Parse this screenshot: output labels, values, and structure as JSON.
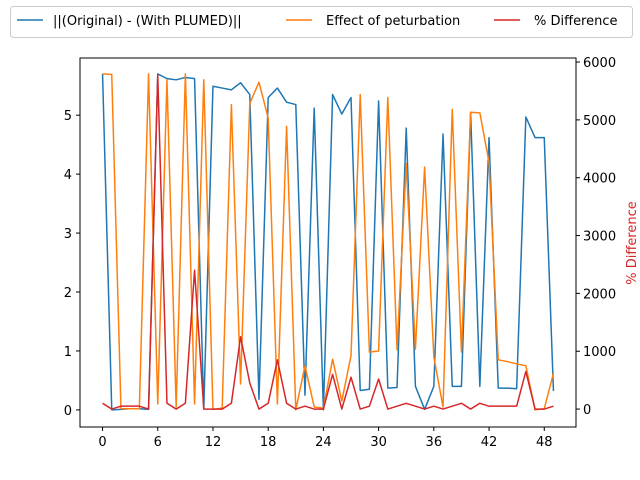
{
  "chart_data": {
    "type": "line",
    "title": "",
    "xlabel": "",
    "ylabel_left": "",
    "ylabel_right": "% Difference",
    "grid": false,
    "legend_placement": "top, above plot, horizontal",
    "xlim": [
      -2.45,
      51.45
    ],
    "ylim_left": [
      -0.29,
      5.97
    ],
    "ylim_right": [
      -310,
      6070
    ],
    "x_ticks": [
      0,
      6,
      12,
      18,
      24,
      30,
      36,
      42,
      48
    ],
    "y_ticks_left": [
      0,
      1,
      2,
      3,
      4,
      5
    ],
    "y_ticks_right": [
      0,
      1000,
      2000,
      3000,
      4000,
      5000,
      6000
    ],
    "x": [
      0,
      1,
      2,
      3,
      4,
      5,
      6,
      7,
      8,
      9,
      10,
      11,
      12,
      13,
      14,
      15,
      16,
      17,
      18,
      19,
      20,
      21,
      22,
      23,
      24,
      25,
      26,
      27,
      28,
      29,
      30,
      31,
      32,
      33,
      34,
      35,
      36,
      37,
      38,
      39,
      40,
      41,
      42,
      43,
      44,
      45,
      46,
      47,
      48,
      49
    ],
    "series": [
      {
        "name": "||(Original) - (With PLUMED)||",
        "axis": "left",
        "color": "#1f77b4",
        "values": [
          5.7,
          0.0,
          0.01,
          0.02,
          0.02,
          0.01,
          5.7,
          5.62,
          5.6,
          5.64,
          5.62,
          0.02,
          5.49,
          5.46,
          5.43,
          5.55,
          5.35,
          0.18,
          5.3,
          5.46,
          5.22,
          5.18,
          0.25,
          5.12,
          0.0,
          5.35,
          5.02,
          5.3,
          0.33,
          0.35,
          5.24,
          0.37,
          0.38,
          4.78,
          0.4,
          0.01,
          0.4,
          4.68,
          0.4,
          0.4,
          5.04,
          0.4,
          4.62,
          0.37,
          0.37,
          0.36,
          4.97,
          4.62,
          4.62,
          0.32
        ]
      },
      {
        "name": "Effect of peturbation",
        "axis": "left",
        "color": "#ff7f0e",
        "values": [
          5.7,
          5.69,
          0.02,
          0.02,
          0.02,
          5.7,
          0.1,
          5.6,
          0.05,
          5.7,
          0.1,
          5.6,
          0.01,
          0.03,
          5.18,
          0.44,
          5.2,
          5.56,
          4.95,
          0.1,
          4.81,
          0.0,
          0.75,
          0.05,
          0.03,
          0.86,
          0.15,
          0.92,
          5.35,
          0.98,
          1.0,
          5.3,
          1.02,
          4.18,
          1.03,
          4.12,
          0.9,
          0.05,
          5.1,
          0.98,
          5.05,
          5.04,
          4.2,
          0.85,
          0.82,
          0.78,
          0.75,
          0.0,
          0.02,
          0.62
        ]
      },
      {
        "name": "% Difference",
        "axis": "right",
        "color": "#d62728",
        "values": [
          100,
          0,
          50,
          50,
          50,
          0,
          5780,
          100,
          0,
          100,
          2400,
          0,
          0,
          0,
          100,
          1250,
          450,
          0,
          100,
          850,
          100,
          0,
          50,
          0,
          0,
          600,
          0,
          550,
          0,
          50,
          520,
          0,
          50,
          100,
          50,
          0,
          50,
          0,
          50,
          100,
          0,
          100,
          50,
          50,
          50,
          50,
          650,
          0,
          0,
          50
        ]
      }
    ]
  }
}
